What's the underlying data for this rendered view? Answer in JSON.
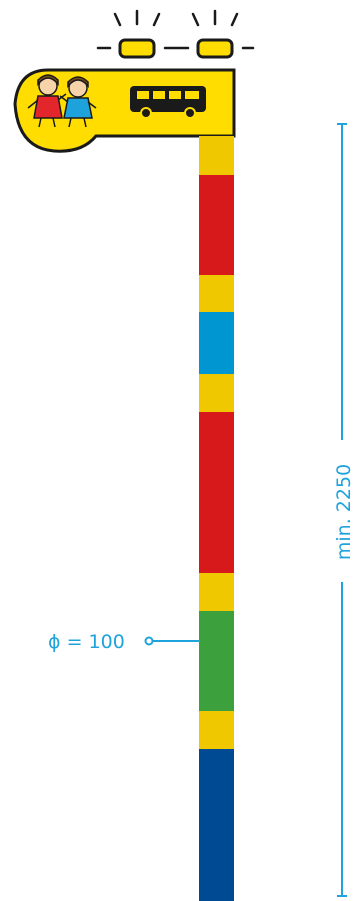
{
  "sign": {
    "pictograms": [
      "children-icon",
      "bus-icon"
    ],
    "background_color": "#ffdd00",
    "outline_color": "#1a1a1a",
    "warning_lights": 2
  },
  "pole": {
    "stripes": [
      {
        "color": "yellow",
        "hex": "#f0c800"
      },
      {
        "color": "red",
        "hex": "#d7191c"
      },
      {
        "color": "yellow",
        "hex": "#f0c800"
      },
      {
        "color": "blue",
        "hex": "#0096d2"
      },
      {
        "color": "yellow",
        "hex": "#f0c800"
      },
      {
        "color": "red",
        "hex": "#d7191c"
      },
      {
        "color": "yellow",
        "hex": "#f0c800"
      },
      {
        "color": "green",
        "hex": "#3ca03c"
      },
      {
        "color": "yellow",
        "hex": "#f0c800"
      },
      {
        "color": "dark-blue",
        "hex": "#004a93"
      }
    ]
  },
  "dimensions": {
    "diameter_label": "ϕ = 100",
    "height_label": "min. 2250",
    "color": "#1fa3dc"
  }
}
